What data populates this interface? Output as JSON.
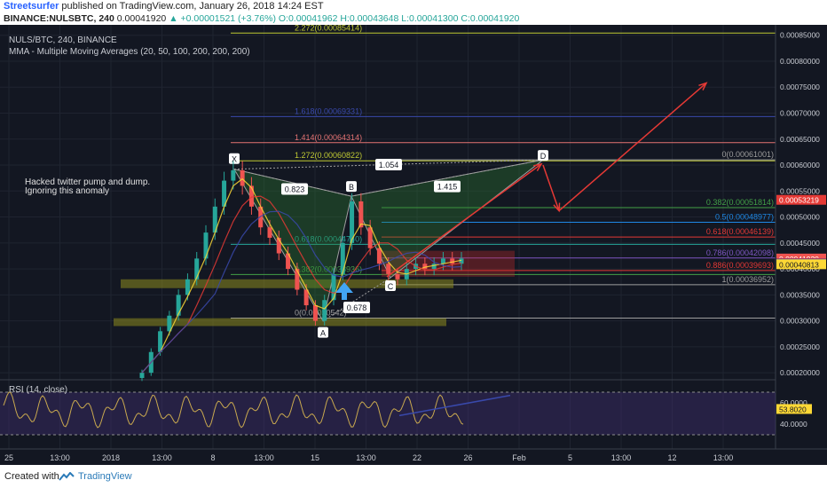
{
  "header": {
    "author": "Streetsurfer",
    "published": "published on TradingView.com, January 26, 2018 14:24 EST",
    "symbol": "BINANCE:NULSBTC, 240",
    "last": "0.00041920",
    "change": "+0.00001521 (+3.76%)",
    "ohlc": "O:0.00041962 H:0.00043648 L:0.00041300 C:0.00041920",
    "open_label": "O:",
    "high_label": "H:",
    "low_label": "L:",
    "close_label": "C:"
  },
  "pane": {
    "title": "NULS/BTC, 240, BINANCE",
    "indicator": "MMA - Multiple Moving Averages (20, 50, 100, 200, 200, 200)",
    "note_line1": "Hacked twitter pump and dump.",
    "note_line2": "Ignoring this anomaly"
  },
  "rsi": {
    "label": "RSI (14, close)",
    "value": "53.8020",
    "ticks": [
      "60.0000",
      "40.0000"
    ]
  },
  "footer": {
    "created_with": "Created with",
    "brand": "TradingView"
  },
  "colors": {
    "background": "#131722",
    "up_candle": "#26a69a",
    "down_candle": "#ef5350",
    "pattern_fill": "#2e7d32",
    "support_zone": "#8c8a1e",
    "target_arrow": "#e53935"
  },
  "chart_data": {
    "type": "candlestick",
    "title": "NULS/BTC, 240, BINANCE",
    "y_axis_ticks": [
      "0.00085000",
      "0.00080000",
      "0.00075000",
      "0.00070000",
      "0.00065000",
      "0.00060000",
      "0.00055000",
      "0.00050000",
      "0.00045000",
      "0.00040000",
      "0.00035000",
      "0.00030000",
      "0.00025000",
      "0.00020000"
    ],
    "ylim": [
      0.00019,
      0.00087
    ],
    "x_axis_ticks": [
      "25",
      "13:00",
      "2018",
      "13:00",
      "8",
      "13:00",
      "15",
      "13:00",
      "22",
      "26",
      "Feb",
      "5",
      "13:00",
      "12",
      "13:00"
    ],
    "price_tags": [
      {
        "label": "0.00053219",
        "value": 0.00053219,
        "color": "#e53935"
      },
      {
        "label": "0.00041920",
        "value": 0.0004192,
        "color": "#ef5350"
      },
      {
        "label": "0.00041040",
        "value": 0.0004104,
        "color": "#e53935"
      },
      {
        "label": "0.00040935",
        "value": 0.00040935,
        "color": "#3f51b5"
      },
      {
        "label": "0.00040813",
        "value": 0.00040813,
        "color": "#fdd835"
      }
    ],
    "pattern_points": [
      {
        "label": "X",
        "value": 0.000592
      },
      {
        "label": "A",
        "value": 0.0003
      },
      {
        "label": "B",
        "value": 0.00054
      },
      {
        "label": "C",
        "value": 0.000383
      },
      {
        "label": "D",
        "value": 0.00061
      }
    ],
    "pattern_ratios": [
      "0.823",
      "1.054",
      "1.415",
      "0.678"
    ],
    "fib_levels_left": [
      {
        "label": "2.272(0.00085414)",
        "value": 0.00085414,
        "color": "#c0ca33"
      },
      {
        "label": "1.618(0.00069331)",
        "value": 0.00069331,
        "color": "#3949ab"
      },
      {
        "label": "1.414(0.00064314)",
        "value": 0.00064314,
        "color": "#e57373"
      },
      {
        "label": "1.272(0.00060822)",
        "value": 0.00060822,
        "color": "#c0ca33"
      },
      {
        "label": "0.618(0.00044740)",
        "value": 0.0004474,
        "color": "#26a69a"
      },
      {
        "label": "0.382(0.00038936)",
        "value": 0.00038936,
        "color": "#43a047"
      },
      {
        "label": "0(0.00030542)",
        "value": 0.00030542,
        "color": "#9e9e9e"
      }
    ],
    "fib_levels_right": [
      {
        "label": "0(0.00061001)",
        "value": 0.00061001,
        "color": "#9e9e9e"
      },
      {
        "label": "0.382(0.00051814)",
        "value": 0.00051814,
        "color": "#43a047"
      },
      {
        "label": "0.5(0.00048977)",
        "value": 0.00048977,
        "color": "#1e88e5"
      },
      {
        "label": "0.618(0.00046139)",
        "value": 0.00046139,
        "color": "#e53935"
      },
      {
        "label": "0.786(0.00042098)",
        "value": 0.00042098,
        "color": "#7e57c2"
      },
      {
        "label": "0.886(0.00039693)",
        "value": 0.00039693,
        "color": "#e53935"
      },
      {
        "label": "1(0.00036952)",
        "value": 0.00036952,
        "color": "#9e9e9e"
      }
    ],
    "price_series_approx": [
      0.0002,
      0.00024,
      0.00028,
      0.00031,
      0.00035,
      0.00038,
      0.00042,
      0.00047,
      0.00052,
      0.00057,
      0.00059,
      0.00056,
      0.00052,
      0.00048,
      0.00046,
      0.00043,
      0.0004,
      0.00036,
      0.00033,
      0.0003,
      0.00034,
      0.00039,
      0.00045,
      0.00053,
      0.00048,
      0.00044,
      0.00041,
      0.00039,
      0.00038,
      0.0004,
      0.00041,
      0.0004,
      0.00041,
      0.00042,
      0.00041,
      0.00042
    ]
  }
}
